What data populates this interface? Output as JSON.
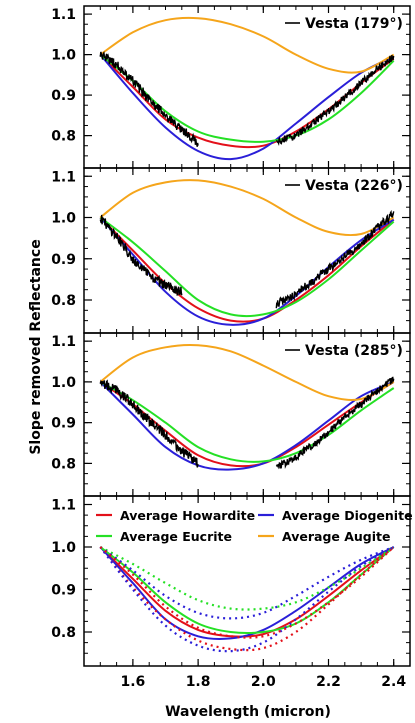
{
  "figure": {
    "ylabel": "Slope removed Reflectance",
    "xlabel": "Wavelength (micron)",
    "colors": {
      "howardite": "#e3101a",
      "diogenite": "#2a1fd8",
      "eucrite": "#25e025",
      "augite": "#f5a51b",
      "vesta": "#000000"
    }
  },
  "chart_data": [
    {
      "type": "line",
      "title": "",
      "legend": [
        {
          "label": "Vesta (179°)",
          "color": "#000000"
        }
      ],
      "legend_position": "top-right",
      "xlim": [
        1.45,
        2.45
      ],
      "ylim": [
        0.72,
        1.12
      ],
      "xticks": [
        1.6,
        1.8,
        2.0,
        2.2,
        2.4
      ],
      "yticks": [
        0.8,
        0.9,
        1.0,
        1.1
      ],
      "ytick_labels": [
        "0.8",
        "0.9",
        "1.0",
        "1.1"
      ],
      "series": [
        {
          "name": "Average Howardite",
          "color": "#e3101a",
          "x": [
            1.5,
            1.6,
            1.7,
            1.8,
            1.9,
            2.0,
            2.1,
            2.2,
            2.3,
            2.4
          ],
          "y": [
            1.0,
            0.92,
            0.84,
            0.795,
            0.775,
            0.775,
            0.81,
            0.865,
            0.93,
            0.99
          ]
        },
        {
          "name": "Average Diogenite",
          "color": "#2a1fd8",
          "x": [
            1.5,
            1.6,
            1.7,
            1.8,
            1.9,
            2.0,
            2.1,
            2.2,
            2.3,
            2.4
          ],
          "y": [
            1.0,
            0.905,
            0.82,
            0.762,
            0.742,
            0.768,
            0.83,
            0.895,
            0.955,
            0.995
          ]
        },
        {
          "name": "Average Eucrite",
          "color": "#25e025",
          "x": [
            1.5,
            1.6,
            1.7,
            1.8,
            1.9,
            2.0,
            2.1,
            2.2,
            2.3,
            2.4
          ],
          "y": [
            1.0,
            0.935,
            0.86,
            0.81,
            0.79,
            0.785,
            0.8,
            0.84,
            0.905,
            0.985
          ]
        },
        {
          "name": "Average Augite",
          "color": "#f5a51b",
          "x": [
            1.5,
            1.6,
            1.7,
            1.8,
            1.9,
            2.0,
            2.1,
            2.2,
            2.3,
            2.4
          ],
          "y": [
            1.0,
            1.055,
            1.085,
            1.09,
            1.075,
            1.045,
            1.0,
            0.965,
            0.958,
            1.0
          ]
        },
        {
          "name": "Vesta (179°)",
          "color": "#000000",
          "noisy": true,
          "segments": [
            {
              "x": [
                1.5,
                1.55,
                1.6,
                1.65,
                1.7,
                1.75,
                1.78,
                1.8
              ],
              "y": [
                1.0,
                0.975,
                0.935,
                0.89,
                0.85,
                0.815,
                0.795,
                0.78
              ],
              "noise": 0.012
            },
            {
              "x": [
                2.04,
                2.1,
                2.15,
                2.2,
                2.25,
                2.3,
                2.35,
                2.4
              ],
              "y": [
                0.785,
                0.8,
                0.83,
                0.86,
                0.895,
                0.93,
                0.965,
                0.995
              ],
              "noise": 0.009
            }
          ]
        }
      ]
    },
    {
      "type": "line",
      "title": "",
      "legend": [
        {
          "label": "Vesta (226°)",
          "color": "#000000"
        }
      ],
      "legend_position": "top-right",
      "xlim": [
        1.45,
        2.45
      ],
      "ylim": [
        0.72,
        1.12
      ],
      "xticks": [
        1.6,
        1.8,
        2.0,
        2.2,
        2.4
      ],
      "yticks": [
        0.8,
        0.9,
        1.0,
        1.1
      ],
      "ytick_labels": [
        "0.8",
        "0.9",
        "1.0",
        "1.1"
      ],
      "series": [
        {
          "name": "Average Howardite",
          "color": "#e3101a",
          "x": [
            1.5,
            1.6,
            1.7,
            1.8,
            1.9,
            2.0,
            2.1,
            2.2,
            2.3,
            2.4
          ],
          "y": [
            1.0,
            0.92,
            0.84,
            0.78,
            0.75,
            0.755,
            0.8,
            0.86,
            0.93,
            0.995
          ]
        },
        {
          "name": "Average Diogenite",
          "color": "#2a1fd8",
          "x": [
            1.5,
            1.6,
            1.7,
            1.8,
            1.9,
            2.0,
            2.1,
            2.2,
            2.3,
            2.4
          ],
          "y": [
            1.0,
            0.91,
            0.82,
            0.76,
            0.74,
            0.755,
            0.81,
            0.88,
            0.945,
            0.995
          ]
        },
        {
          "name": "Average Eucrite",
          "color": "#25e025",
          "x": [
            1.5,
            1.6,
            1.7,
            1.8,
            1.9,
            2.0,
            2.1,
            2.2,
            2.3,
            2.4
          ],
          "y": [
            1.0,
            0.94,
            0.87,
            0.8,
            0.765,
            0.765,
            0.795,
            0.85,
            0.92,
            0.99
          ]
        },
        {
          "name": "Average Augite",
          "color": "#f5a51b",
          "x": [
            1.5,
            1.6,
            1.7,
            1.8,
            1.9,
            2.0,
            2.1,
            2.2,
            2.3,
            2.4
          ],
          "y": [
            1.0,
            1.06,
            1.085,
            1.09,
            1.075,
            1.045,
            1.0,
            0.965,
            0.96,
            1.0
          ]
        },
        {
          "name": "Vesta (226°)",
          "color": "#000000",
          "noisy": true,
          "segments": [
            {
              "x": [
                1.5,
                1.55,
                1.6,
                1.65,
                1.7,
                1.75
              ],
              "y": [
                1.0,
                0.955,
                0.9,
                0.86,
                0.835,
                0.82
              ],
              "noise": 0.012
            },
            {
              "x": [
                2.04,
                2.1,
                2.15,
                2.2,
                2.25,
                2.3,
                2.35,
                2.4
              ],
              "y": [
                0.79,
                0.815,
                0.845,
                0.875,
                0.905,
                0.935,
                0.975,
                1.01
              ],
              "noise": 0.01
            }
          ]
        }
      ]
    },
    {
      "type": "line",
      "title": "",
      "legend": [
        {
          "label": "Vesta (285°)",
          "color": "#000000"
        }
      ],
      "legend_position": "top-right",
      "xlim": [
        1.45,
        2.45
      ],
      "ylim": [
        0.72,
        1.12
      ],
      "xticks": [
        1.6,
        1.8,
        2.0,
        2.2,
        2.4
      ],
      "yticks": [
        0.8,
        0.9,
        1.0,
        1.1
      ],
      "ytick_labels": [
        "0.8",
        "0.9",
        "1.0",
        "1.1"
      ],
      "series": [
        {
          "name": "Average Howardite",
          "color": "#e3101a",
          "x": [
            1.5,
            1.6,
            1.7,
            1.8,
            1.9,
            2.0,
            2.1,
            2.2,
            2.3,
            2.4
          ],
          "y": [
            1.0,
            0.945,
            0.88,
            0.82,
            0.795,
            0.8,
            0.84,
            0.895,
            0.95,
            1.0
          ]
        },
        {
          "name": "Average Diogenite",
          "color": "#2a1fd8",
          "x": [
            1.5,
            1.6,
            1.7,
            1.8,
            1.9,
            2.0,
            2.1,
            2.2,
            2.3,
            2.4
          ],
          "y": [
            1.0,
            0.92,
            0.84,
            0.795,
            0.785,
            0.8,
            0.845,
            0.905,
            0.965,
            1.0
          ]
        },
        {
          "name": "Average Eucrite",
          "color": "#25e025",
          "x": [
            1.5,
            1.6,
            1.7,
            1.8,
            1.9,
            2.0,
            2.1,
            2.2,
            2.3,
            2.4
          ],
          "y": [
            1.0,
            0.955,
            0.9,
            0.84,
            0.81,
            0.805,
            0.825,
            0.87,
            0.93,
            0.985
          ]
        },
        {
          "name": "Average Augite",
          "color": "#f5a51b",
          "x": [
            1.5,
            1.6,
            1.7,
            1.8,
            1.9,
            2.0,
            2.1,
            2.2,
            2.3,
            2.4
          ],
          "y": [
            1.0,
            1.06,
            1.085,
            1.09,
            1.075,
            1.04,
            1.0,
            0.965,
            0.958,
            1.0
          ]
        },
        {
          "name": "Vesta (285°)",
          "color": "#000000",
          "noisy": true,
          "segments": [
            {
              "x": [
                1.5,
                1.55,
                1.6,
                1.65,
                1.7,
                1.75,
                1.8
              ],
              "y": [
                1.0,
                0.98,
                0.945,
                0.905,
                0.87,
                0.83,
                0.8
              ],
              "noise": 0.012
            },
            {
              "x": [
                2.04,
                2.1,
                2.15,
                2.2,
                2.25,
                2.3,
                2.35,
                2.4
              ],
              "y": [
                0.79,
                0.815,
                0.845,
                0.875,
                0.915,
                0.945,
                0.98,
                1.005
              ],
              "noise": 0.009
            }
          ]
        }
      ]
    },
    {
      "type": "line",
      "title": "",
      "legend": [
        {
          "label": "Average Howardite",
          "color": "#e3101a"
        },
        {
          "label": "Average Diogenite",
          "color": "#2a1fd8"
        },
        {
          "label": "Average Eucrite",
          "color": "#25e025"
        },
        {
          "label": "Average Augite",
          "color": "#f5a51b"
        }
      ],
      "legend_position": "top",
      "xlim": [
        1.45,
        2.45
      ],
      "ylim": [
        0.72,
        1.12
      ],
      "xticks": [
        1.6,
        1.8,
        2.0,
        2.2,
        2.4
      ],
      "xtick_labels": [
        "1.6",
        "1.8",
        "2.0",
        "2.2",
        "2.4"
      ],
      "yticks": [
        0.8,
        0.9,
        1.0,
        1.1
      ],
      "ytick_labels": [
        "0.8",
        "0.9",
        "1.0",
        "1.1"
      ],
      "series": [
        {
          "name": "Average Howardite",
          "color": "#e3101a",
          "style": "solid",
          "x": [
            1.5,
            1.6,
            1.7,
            1.8,
            1.9,
            2.0,
            2.1,
            2.2,
            2.3,
            2.4
          ],
          "y": [
            1.0,
            0.925,
            0.85,
            0.805,
            0.79,
            0.795,
            0.83,
            0.885,
            0.945,
            1.0
          ]
        },
        {
          "name": "Average Diogenite",
          "color": "#2a1fd8",
          "style": "solid",
          "x": [
            1.5,
            1.6,
            1.7,
            1.8,
            1.9,
            2.0,
            2.1,
            2.2,
            2.3,
            2.4
          ],
          "y": [
            1.0,
            0.915,
            0.83,
            0.79,
            0.785,
            0.805,
            0.85,
            0.905,
            0.96,
            1.0
          ]
        },
        {
          "name": "Average Eucrite",
          "color": "#25e025",
          "style": "solid",
          "x": [
            1.5,
            1.6,
            1.7,
            1.8,
            1.9,
            2.0,
            2.1,
            2.2,
            2.3,
            2.4
          ],
          "y": [
            1.0,
            0.94,
            0.87,
            0.82,
            0.8,
            0.8,
            0.82,
            0.87,
            0.935,
            1.0
          ]
        },
        {
          "name": "Average Howardite",
          "color": "#e3101a",
          "style": "dotted",
          "x": [
            1.5,
            1.6,
            1.7,
            1.8,
            1.9,
            2.0,
            2.1,
            2.2,
            2.3,
            2.4
          ],
          "y": [
            1.0,
            0.905,
            0.83,
            0.78,
            0.76,
            0.762,
            0.8,
            0.865,
            0.935,
            1.0
          ]
        },
        {
          "name": "Average Diogenite",
          "color": "#2a1fd8",
          "style": "dotted",
          "x": [
            1.5,
            1.6,
            1.7,
            1.8,
            1.9,
            2.0,
            2.1,
            2.2,
            2.3,
            2.4
          ],
          "y": [
            1.0,
            0.9,
            0.815,
            0.768,
            0.755,
            0.775,
            0.83,
            0.895,
            0.955,
            1.0
          ]
        },
        {
          "name": "Average Eucrite",
          "color": "#25e025",
          "style": "dotted",
          "x": [
            1.5,
            1.6,
            1.7,
            1.8,
            1.9,
            2.0,
            2.1,
            2.2,
            2.3,
            2.4
          ],
          "y": [
            1.0,
            0.96,
            0.915,
            0.875,
            0.855,
            0.855,
            0.87,
            0.905,
            0.95,
            1.0
          ]
        },
        {
          "name": "Average Diogenite",
          "color": "#2a1fd8",
          "style": "dotted",
          "x": [
            1.5,
            1.6,
            1.7,
            1.8,
            1.9,
            2.0,
            2.1,
            2.2,
            2.3,
            2.4
          ],
          "y": [
            1.0,
            0.945,
            0.885,
            0.845,
            0.832,
            0.845,
            0.885,
            0.93,
            0.97,
            1.0
          ]
        },
        {
          "name": "Average Howardite",
          "color": "#e3101a",
          "style": "dotted",
          "x": [
            1.5,
            1.6,
            1.7,
            1.8,
            1.9,
            2.0,
            2.1,
            2.2,
            2.3,
            2.4
          ],
          "y": [
            1.0,
            0.935,
            0.86,
            0.81,
            0.79,
            0.79,
            0.82,
            0.87,
            0.93,
            1.0
          ]
        }
      ]
    }
  ]
}
